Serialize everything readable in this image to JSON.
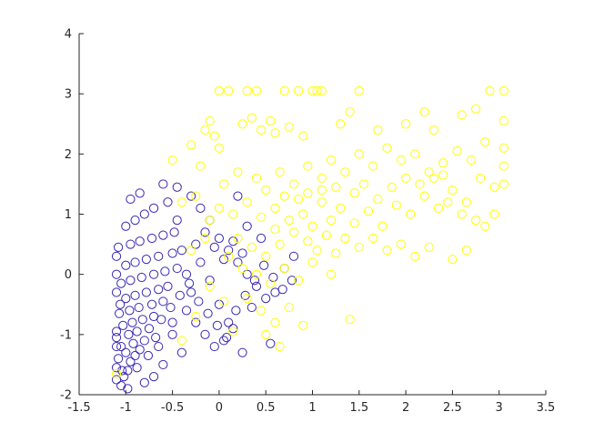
{
  "chart_data": {
    "type": "scatter",
    "xlim": [
      -1.5,
      3.5
    ],
    "ylim": [
      -2,
      4
    ],
    "x_ticks": [
      -1.5,
      -1,
      -0.5,
      0,
      0.5,
      1,
      1.5,
      2,
      2.5,
      3,
      3.5
    ],
    "y_ticks": [
      -2,
      -1,
      0,
      1,
      2,
      3,
      4
    ],
    "x_tick_labels": [
      "-1.5",
      "-1",
      "-0.5",
      "0",
      "0.5",
      "1",
      "1.5",
      "2",
      "2.5",
      "3",
      "3.5"
    ],
    "y_tick_labels": [
      "-2",
      "-1",
      "0",
      "1",
      "2",
      "3",
      "4"
    ],
    "grid": false,
    "legend": "none",
    "marker": "open-circle",
    "series": [
      {
        "color": "#3a28b4",
        "points": [
          [
            -1.05,
            -1.85
          ],
          [
            -1.02,
            -1.7
          ],
          [
            -0.98,
            -1.6
          ],
          [
            -1.1,
            -1.55
          ],
          [
            -0.95,
            -1.45
          ],
          [
            -1.08,
            -1.4
          ],
          [
            -0.9,
            -1.35
          ],
          [
            -1.0,
            -1.3
          ],
          [
            -0.85,
            -1.25
          ],
          [
            -1.05,
            -1.2
          ],
          [
            -0.92,
            -1.15
          ],
          [
            -0.8,
            -1.1
          ],
          [
            -1.1,
            -1.05
          ],
          [
            -0.97,
            -1.0
          ],
          [
            -0.88,
            -0.95
          ],
          [
            -0.75,
            -0.9
          ],
          [
            -1.03,
            -0.85
          ],
          [
            -0.93,
            -0.8
          ],
          [
            -0.82,
            -0.75
          ],
          [
            -0.7,
            -0.7
          ],
          [
            -1.07,
            -0.65
          ],
          [
            -0.96,
            -0.6
          ],
          [
            -0.86,
            -0.55
          ],
          [
            -0.72,
            -0.5
          ],
          [
            -0.6,
            -0.45
          ],
          [
            -1.0,
            -0.4
          ],
          [
            -0.9,
            -0.35
          ],
          [
            -0.78,
            -0.3
          ],
          [
            -0.65,
            -0.25
          ],
          [
            -0.55,
            -0.2
          ],
          [
            -1.05,
            -0.15
          ],
          [
            -0.95,
            -0.1
          ],
          [
            -0.83,
            -0.05
          ],
          [
            -0.7,
            0.0
          ],
          [
            -0.58,
            0.05
          ],
          [
            -0.45,
            0.1
          ],
          [
            -1.0,
            0.15
          ],
          [
            -0.9,
            0.2
          ],
          [
            -0.78,
            0.25
          ],
          [
            -0.65,
            0.3
          ],
          [
            -0.5,
            0.35
          ],
          [
            -0.4,
            0.4
          ],
          [
            -1.08,
            0.45
          ],
          [
            -0.95,
            0.5
          ],
          [
            -0.85,
            0.55
          ],
          [
            -0.72,
            0.6
          ],
          [
            -0.6,
            0.65
          ],
          [
            -0.48,
            0.7
          ],
          [
            -1.0,
            0.8
          ],
          [
            -0.9,
            0.9
          ],
          [
            -0.8,
            1.0
          ],
          [
            -0.7,
            1.1
          ],
          [
            -0.55,
            1.2
          ],
          [
            -0.95,
            1.25
          ],
          [
            -0.85,
            1.35
          ],
          [
            -0.6,
            1.5
          ],
          [
            -0.45,
            1.45
          ],
          [
            -0.3,
            1.3
          ],
          [
            -0.2,
            1.1
          ],
          [
            -0.1,
            0.9
          ],
          [
            0.0,
            0.6
          ],
          [
            0.1,
            0.4
          ],
          [
            0.2,
            0.2
          ],
          [
            0.3,
            0.0
          ],
          [
            0.4,
            -0.2
          ],
          [
            0.5,
            -0.4
          ],
          [
            0.6,
            -0.3
          ],
          [
            0.7,
            0.1
          ],
          [
            0.8,
            0.3
          ],
          [
            0.45,
            0.6
          ],
          [
            0.3,
            0.8
          ],
          [
            0.2,
            1.3
          ],
          [
            -0.35,
            -0.6
          ],
          [
            -0.25,
            -0.8
          ],
          [
            -0.15,
            -1.0
          ],
          [
            -0.05,
            -1.2
          ],
          [
            0.05,
            -1.1
          ],
          [
            0.15,
            -0.9
          ],
          [
            0.25,
            -1.3
          ],
          [
            0.55,
            -1.15
          ],
          [
            -0.5,
            -1.0
          ],
          [
            -0.4,
            -1.3
          ],
          [
            -0.6,
            -1.5
          ],
          [
            -0.7,
            -1.7
          ],
          [
            -0.8,
            -1.8
          ],
          [
            -0.65,
            -1.2
          ],
          [
            -0.5,
            -0.8
          ],
          [
            -0.3,
            -0.3
          ],
          [
            -0.2,
            0.2
          ],
          [
            -0.1,
            -0.1
          ],
          [
            0.0,
            -0.5
          ],
          [
            0.1,
            -0.8
          ],
          [
            -0.35,
            0.0
          ],
          [
            -0.25,
            0.5
          ],
          [
            -0.15,
            0.7
          ],
          [
            -0.45,
            0.9
          ],
          [
            -1.1,
            -1.75
          ],
          [
            -1.1,
            -0.95
          ],
          [
            -1.1,
            0.0
          ],
          [
            -1.1,
            0.3
          ],
          [
            -1.1,
            -0.3
          ],
          [
            -1.1,
            -1.2
          ],
          [
            -1.06,
            -0.5
          ],
          [
            -1.04,
            -1.6
          ],
          [
            -0.98,
            -1.9
          ],
          [
            -0.88,
            -1.55
          ],
          [
            -0.76,
            -1.35
          ],
          [
            -0.68,
            -1.05
          ],
          [
            -0.62,
            -0.75
          ],
          [
            -0.52,
            -0.55
          ],
          [
            -0.42,
            -0.35
          ],
          [
            -0.32,
            -0.15
          ],
          [
            -0.22,
            -0.45
          ],
          [
            -0.12,
            -0.65
          ],
          [
            -0.02,
            -0.85
          ],
          [
            0.08,
            -1.05
          ],
          [
            0.18,
            -0.6
          ],
          [
            0.28,
            -0.35
          ],
          [
            0.38,
            -0.1
          ],
          [
            0.48,
            0.15
          ],
          [
            0.58,
            -0.05
          ],
          [
            0.68,
            -0.25
          ],
          [
            0.78,
            -0.1
          ],
          [
            0.35,
            -0.55
          ],
          [
            0.25,
            0.35
          ],
          [
            0.15,
            0.55
          ],
          [
            0.05,
            0.25
          ],
          [
            -0.05,
            0.45
          ]
        ]
      },
      {
        "color": "#ffff00",
        "points": [
          [
            0.0,
            3.05
          ],
          [
            0.1,
            3.05
          ],
          [
            0.3,
            3.05
          ],
          [
            0.4,
            3.05
          ],
          [
            0.7,
            3.05
          ],
          [
            0.85,
            3.05
          ],
          [
            1.0,
            3.05
          ],
          [
            1.05,
            3.05
          ],
          [
            1.1,
            3.05
          ],
          [
            1.5,
            3.05
          ],
          [
            2.9,
            3.05
          ],
          [
            3.05,
            3.05
          ],
          [
            -0.15,
            2.4
          ],
          [
            -0.1,
            2.55
          ],
          [
            -0.05,
            2.3
          ],
          [
            0.0,
            2.1
          ],
          [
            0.25,
            2.5
          ],
          [
            0.35,
            2.6
          ],
          [
            0.45,
            2.4
          ],
          [
            0.55,
            2.55
          ],
          [
            0.6,
            2.35
          ],
          [
            0.75,
            2.45
          ],
          [
            0.9,
            2.3
          ],
          [
            1.3,
            2.5
          ],
          [
            1.4,
            2.7
          ],
          [
            1.7,
            2.4
          ],
          [
            2.0,
            2.5
          ],
          [
            2.2,
            2.7
          ],
          [
            2.3,
            2.4
          ],
          [
            2.6,
            2.65
          ],
          [
            2.75,
            2.75
          ],
          [
            3.05,
            2.55
          ],
          [
            -0.5,
            1.9
          ],
          [
            -0.3,
            2.15
          ],
          [
            -0.2,
            1.8
          ],
          [
            0.05,
            1.5
          ],
          [
            0.2,
            1.7
          ],
          [
            0.4,
            1.6
          ],
          [
            0.5,
            1.4
          ],
          [
            0.65,
            1.7
          ],
          [
            0.8,
            1.5
          ],
          [
            0.95,
            1.8
          ],
          [
            1.1,
            1.6
          ],
          [
            1.2,
            1.9
          ],
          [
            1.35,
            1.7
          ],
          [
            1.5,
            2.0
          ],
          [
            1.65,
            1.8
          ],
          [
            1.8,
            2.1
          ],
          [
            1.95,
            1.9
          ],
          [
            2.1,
            2.0
          ],
          [
            2.25,
            1.7
          ],
          [
            2.4,
            1.85
          ],
          [
            2.55,
            2.05
          ],
          [
            2.7,
            1.9
          ],
          [
            2.85,
            2.2
          ],
          [
            3.05,
            2.1
          ],
          [
            -0.4,
            1.2
          ],
          [
            -0.25,
            1.3
          ],
          [
            -0.1,
            0.9
          ],
          [
            0.0,
            1.1
          ],
          [
            0.15,
            1.0
          ],
          [
            0.3,
            1.2
          ],
          [
            0.45,
            0.95
          ],
          [
            0.6,
            1.1
          ],
          [
            0.75,
            0.9
          ],
          [
            0.9,
            1.0
          ],
          [
            1.0,
            0.8
          ],
          [
            1.1,
            1.2
          ],
          [
            1.2,
            0.9
          ],
          [
            1.3,
            1.1
          ],
          [
            1.45,
            0.85
          ],
          [
            1.6,
            1.05
          ],
          [
            1.75,
            0.8
          ],
          [
            1.9,
            1.15
          ],
          [
            2.05,
            1.0
          ],
          [
            2.2,
            1.3
          ],
          [
            2.35,
            1.1
          ],
          [
            2.5,
            1.4
          ],
          [
            2.65,
            1.2
          ],
          [
            2.8,
            1.6
          ],
          [
            2.95,
            1.45
          ],
          [
            3.05,
            1.8
          ],
          [
            0.2,
            0.6
          ],
          [
            0.35,
            0.45
          ],
          [
            0.5,
            0.3
          ],
          [
            0.65,
            0.5
          ],
          [
            0.8,
            0.7
          ],
          [
            0.95,
            0.55
          ],
          [
            1.05,
            0.4
          ],
          [
            1.15,
            0.65
          ],
          [
            1.25,
            0.35
          ],
          [
            1.35,
            0.6
          ],
          [
            1.5,
            0.45
          ],
          [
            1.65,
            0.6
          ],
          [
            1.8,
            0.4
          ],
          [
            1.95,
            0.5
          ],
          [
            2.1,
            0.3
          ],
          [
            2.25,
            0.45
          ],
          [
            2.5,
            0.25
          ],
          [
            2.65,
            0.4
          ],
          [
            2.85,
            0.8
          ],
          [
            -0.3,
            0.4
          ],
          [
            -0.15,
            0.6
          ],
          [
            0.1,
            0.3
          ],
          [
            0.4,
            0.0
          ],
          [
            0.55,
            -0.15
          ],
          [
            0.7,
            0.1
          ],
          [
            0.85,
            -0.1
          ],
          [
            1.0,
            0.2
          ],
          [
            1.2,
            0.0
          ],
          [
            0.3,
            -0.4
          ],
          [
            0.45,
            -0.6
          ],
          [
            0.6,
            -0.8
          ],
          [
            0.75,
            -0.55
          ],
          [
            0.9,
            -0.85
          ],
          [
            0.5,
            -1.0
          ],
          [
            0.65,
            -1.2
          ],
          [
            1.4,
            -0.75
          ],
          [
            -0.1,
            -0.2
          ],
          [
            0.05,
            -0.45
          ],
          [
            -0.25,
            -0.7
          ],
          [
            -0.4,
            -1.1
          ],
          [
            -1.1,
            -1.65
          ],
          [
            0.15,
            -0.95
          ],
          [
            0.25,
            0.1
          ],
          [
            0.6,
            0.75
          ],
          [
            0.7,
            1.3
          ],
          [
            0.85,
            1.25
          ],
          [
            1.45,
            1.35
          ],
          [
            1.55,
            1.5
          ],
          [
            1.7,
            1.25
          ],
          [
            1.85,
            1.45
          ],
          [
            2.0,
            1.6
          ],
          [
            2.15,
            1.5
          ],
          [
            2.3,
            1.6
          ],
          [
            2.45,
            1.2
          ],
          [
            2.6,
            1.0
          ],
          [
            2.75,
            0.9
          ],
          [
            2.95,
            1.0
          ],
          [
            3.05,
            1.5
          ],
          [
            2.4,
            1.65
          ],
          [
            1.25,
            1.45
          ],
          [
            1.1,
            1.4
          ],
          [
            0.95,
            1.35
          ]
        ]
      }
    ]
  }
}
